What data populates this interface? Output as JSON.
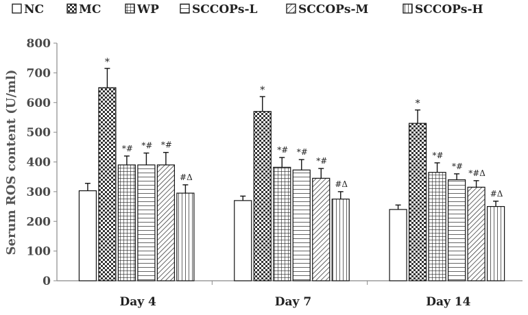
{
  "chart_data": {
    "type": "bar",
    "ylabel": "Serum ROS content (U/ml)",
    "ylim": [
      0,
      800
    ],
    "yticks": [
      0,
      100,
      200,
      300,
      400,
      500,
      600,
      700,
      800
    ],
    "categories": [
      "Day 4",
      "Day 7",
      "Day 14"
    ],
    "legend_position": "top",
    "grid": false,
    "series": [
      {
        "name": "NC",
        "pattern": "plain",
        "values": [
          303,
          270,
          240
        ],
        "errors": [
          25,
          15,
          15
        ],
        "labels": [
          "",
          "",
          ""
        ]
      },
      {
        "name": "MC",
        "pattern": "checker",
        "values": [
          650,
          570,
          530
        ],
        "errors": [
          65,
          50,
          45
        ],
        "labels": [
          "*",
          "*",
          "*"
        ]
      },
      {
        "name": "WP",
        "pattern": "grid",
        "values": [
          390,
          382,
          365
        ],
        "errors": [
          30,
          33,
          32
        ],
        "labels": [
          "*#",
          "*#",
          "*#"
        ]
      },
      {
        "name": "SCCOPs-L",
        "pattern": "hlines",
        "values": [
          390,
          373,
          340
        ],
        "errors": [
          40,
          35,
          20
        ],
        "labels": [
          "*#",
          "*#",
          "*#"
        ]
      },
      {
        "name": "SCCOPs-M",
        "pattern": "diag",
        "values": [
          390,
          345,
          315
        ],
        "errors": [
          42,
          33,
          22
        ],
        "labels": [
          "*#",
          "*#",
          "*#Δ"
        ]
      },
      {
        "name": "SCCOPs-H",
        "pattern": "vlines",
        "values": [
          295,
          275,
          250
        ],
        "errors": [
          28,
          25,
          18
        ],
        "labels": [
          "#Δ",
          "#Δ",
          "#Δ"
        ]
      }
    ]
  }
}
